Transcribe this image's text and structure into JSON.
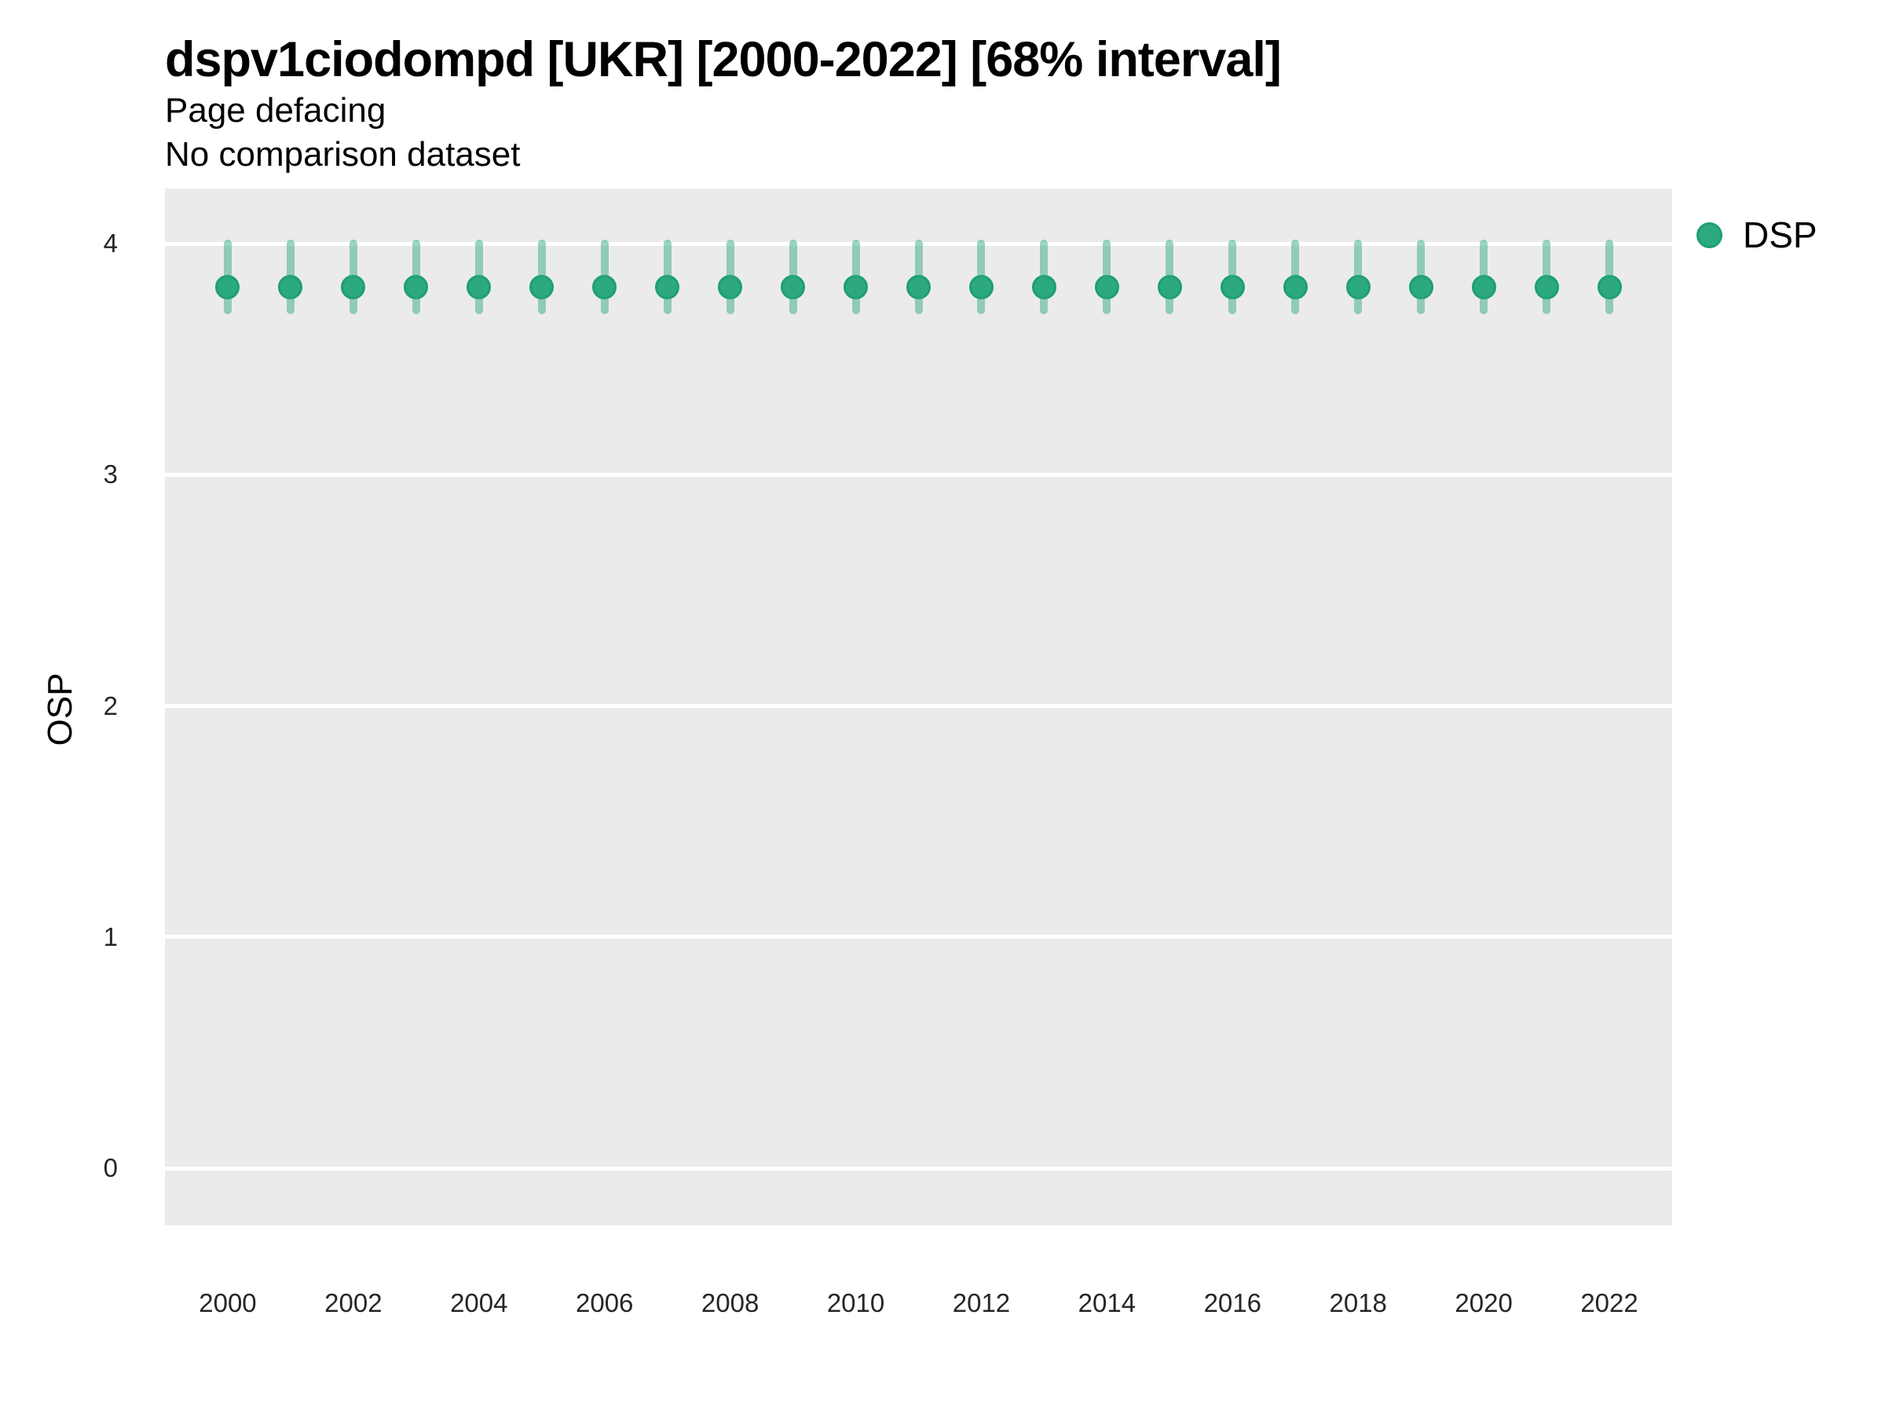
{
  "header": {
    "title": "dspv1ciodompd [UKR] [2000-2022] [68% interval]",
    "subtitle": "Page defacing",
    "comparison_note": "No comparison dataset"
  },
  "y_axis_title": "OSP",
  "legend": {
    "position": "right-top",
    "items": [
      {
        "label": "DSP",
        "marker": "circle-icon",
        "color": "#2CA97F"
      }
    ]
  },
  "colors": {
    "panel_background": "#EBEBEB",
    "gridline": "#FFFFFF",
    "point_fill": "#2CA97F",
    "point_border": "#1E9F72",
    "interval_bar": "rgba(42,167,125,0.47)",
    "title_text": "#000000",
    "tick_text": "#262626"
  },
  "chart_data": {
    "type": "scatter",
    "subtype": "pointrange",
    "title": "dspv1ciodompd [UKR] [2000-2022] [68% interval]",
    "subtitle": "Page defacing",
    "note": "No comparison dataset",
    "xlabel": "",
    "ylabel": "OSP",
    "interval_level": "68%",
    "country": "UKR",
    "grid": "horizontal-major-only",
    "legend_position": "right-top",
    "x": [
      2000,
      2001,
      2002,
      2003,
      2004,
      2005,
      2006,
      2007,
      2008,
      2009,
      2010,
      2011,
      2012,
      2013,
      2014,
      2015,
      2016,
      2017,
      2018,
      2019,
      2020,
      2021,
      2022
    ],
    "series": [
      {
        "name": "DSP",
        "point": [
          3.81,
          3.81,
          3.81,
          3.81,
          3.81,
          3.81,
          3.81,
          3.81,
          3.81,
          3.81,
          3.81,
          3.81,
          3.81,
          3.81,
          3.81,
          3.81,
          3.81,
          3.81,
          3.81,
          3.81,
          3.81,
          3.81,
          3.81
        ],
        "lower": [
          3.71,
          3.71,
          3.71,
          3.71,
          3.71,
          3.71,
          3.71,
          3.71,
          3.71,
          3.71,
          3.71,
          3.71,
          3.71,
          3.71,
          3.71,
          3.71,
          3.71,
          3.71,
          3.71,
          3.71,
          3.71,
          3.71,
          3.71
        ],
        "upper": [
          4.0,
          4.0,
          4.0,
          4.0,
          4.0,
          4.0,
          4.0,
          4.0,
          4.0,
          4.0,
          4.0,
          4.0,
          4.0,
          4.0,
          4.0,
          4.0,
          4.0,
          4.0,
          4.0,
          4.0,
          4.0,
          4.0,
          4.0
        ]
      }
    ],
    "x_ticks": [
      2000,
      2002,
      2004,
      2006,
      2008,
      2010,
      2012,
      2014,
      2016,
      2018,
      2020,
      2022
    ],
    "y_ticks": [
      0,
      1,
      2,
      3,
      4
    ],
    "xlim": [
      1999,
      2023
    ],
    "ylim": [
      -0.248,
      4.238
    ]
  }
}
